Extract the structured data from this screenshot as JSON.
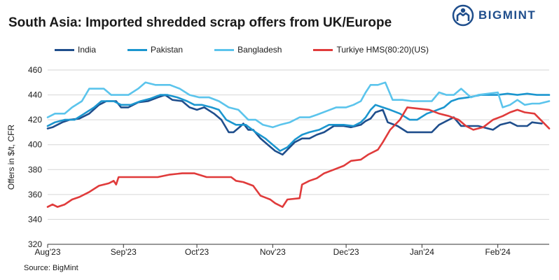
{
  "title": "South Asia: Imported shredded scrap offers from UK/Europe",
  "logo": {
    "text": "BIGMINT",
    "color": "#1f4e8c",
    "icon": "bigmint-logo-icon"
  },
  "source": "Source: BigMint",
  "chart_data": {
    "type": "line",
    "title": "South Asia: Imported shredded scrap offers from UK/Europe",
    "xlabel": "",
    "ylabel": "Offers in $/t, CFR",
    "ylim": [
      320,
      460
    ],
    "yticks": [
      320,
      340,
      360,
      380,
      400,
      420,
      440,
      460
    ],
    "xlim": [
      "2023-08-01",
      "2024-02-22"
    ],
    "xticks": [
      {
        "label": "Aug'23",
        "date": "2023-08-01"
      },
      {
        "label": "Sep'23",
        "date": "2023-09-01"
      },
      {
        "label": "Oct'23",
        "date": "2023-10-01"
      },
      {
        "label": "Nov'23",
        "date": "2023-11-01"
      },
      {
        "label": "Dec'23",
        "date": "2023-12-01"
      },
      {
        "label": "Jan'24",
        "date": "2024-01-01"
      },
      {
        "label": "Feb'24",
        "date": "2024-02-01"
      }
    ],
    "grid": "horizontal",
    "legend_position": "top",
    "series": [
      {
        "name": "India",
        "color": "#1f4e8c",
        "points": [
          [
            "2023-08-01",
            413
          ],
          [
            "2023-08-03",
            414
          ],
          [
            "2023-08-07",
            418
          ],
          [
            "2023-08-10",
            420
          ],
          [
            "2023-08-14",
            421
          ],
          [
            "2023-08-18",
            425
          ],
          [
            "2023-08-22",
            432
          ],
          [
            "2023-08-25",
            435
          ],
          [
            "2023-08-29",
            435
          ],
          [
            "2023-08-31",
            430
          ],
          [
            "2023-09-03",
            430
          ],
          [
            "2023-09-07",
            434
          ],
          [
            "2023-09-11",
            435
          ],
          [
            "2023-09-15",
            438
          ],
          [
            "2023-09-18",
            440
          ],
          [
            "2023-09-21",
            436
          ],
          [
            "2023-09-25",
            435
          ],
          [
            "2023-09-28",
            430
          ],
          [
            "2023-10-01",
            428
          ],
          [
            "2023-10-04",
            430
          ],
          [
            "2023-10-08",
            425
          ],
          [
            "2023-10-11",
            420
          ],
          [
            "2023-10-14",
            410
          ],
          [
            "2023-10-16",
            410
          ],
          [
            "2023-10-19",
            415
          ],
          [
            "2023-10-20",
            417
          ],
          [
            "2023-10-22",
            412
          ],
          [
            "2023-10-24",
            412
          ],
          [
            "2023-10-27",
            405
          ],
          [
            "2023-10-30",
            400
          ],
          [
            "2023-11-02",
            395
          ],
          [
            "2023-11-05",
            392
          ],
          [
            "2023-11-07",
            396
          ],
          [
            "2023-11-10",
            402
          ],
          [
            "2023-11-13",
            405
          ],
          [
            "2023-11-16",
            405
          ],
          [
            "2023-11-19",
            408
          ],
          [
            "2023-11-22",
            410
          ],
          [
            "2023-11-26",
            415
          ],
          [
            "2023-11-30",
            415
          ],
          [
            "2023-12-03",
            414
          ],
          [
            "2023-12-07",
            416
          ],
          [
            "2023-12-09",
            419
          ],
          [
            "2023-12-11",
            421
          ],
          [
            "2023-12-13",
            426
          ],
          [
            "2023-12-16",
            428
          ],
          [
            "2023-12-18",
            418
          ],
          [
            "2023-12-22",
            415
          ],
          [
            "2023-12-26",
            410
          ],
          [
            "2024-01-02",
            410
          ],
          [
            "2024-01-05",
            410
          ],
          [
            "2024-01-08",
            416
          ],
          [
            "2024-01-12",
            420
          ],
          [
            "2024-01-14",
            422
          ],
          [
            "2024-01-17",
            415
          ],
          [
            "2024-01-24",
            415
          ],
          [
            "2024-01-30",
            412
          ],
          [
            "2024-02-02",
            416
          ],
          [
            "2024-02-06",
            418
          ],
          [
            "2024-02-09",
            415
          ],
          [
            "2024-02-13",
            415
          ],
          [
            "2024-02-15",
            418
          ],
          [
            "2024-02-19",
            417
          ]
        ]
      },
      {
        "name": "Pakistan",
        "color": "#1b96cf",
        "points": [
          [
            "2023-08-01",
            415
          ],
          [
            "2023-08-04",
            418
          ],
          [
            "2023-08-08",
            420
          ],
          [
            "2023-08-12",
            420
          ],
          [
            "2023-08-16",
            425
          ],
          [
            "2023-08-20",
            430
          ],
          [
            "2023-08-23",
            435
          ],
          [
            "2023-08-28",
            435
          ],
          [
            "2023-08-31",
            432
          ],
          [
            "2023-09-04",
            432
          ],
          [
            "2023-09-08",
            435
          ],
          [
            "2023-09-12",
            437
          ],
          [
            "2023-09-16",
            440
          ],
          [
            "2023-09-19",
            440
          ],
          [
            "2023-09-23",
            438
          ],
          [
            "2023-09-27",
            435
          ],
          [
            "2023-09-30",
            432
          ],
          [
            "2023-10-03",
            432
          ],
          [
            "2023-10-07",
            430
          ],
          [
            "2023-10-10",
            428
          ],
          [
            "2023-10-13",
            420
          ],
          [
            "2023-10-17",
            416
          ],
          [
            "2023-10-21",
            416
          ],
          [
            "2023-10-25",
            410
          ],
          [
            "2023-10-29",
            405
          ],
          [
            "2023-11-01",
            400
          ],
          [
            "2023-11-04",
            395
          ],
          [
            "2023-11-07",
            398
          ],
          [
            "2023-11-10",
            404
          ],
          [
            "2023-11-13",
            408
          ],
          [
            "2023-11-16",
            410
          ],
          [
            "2023-11-20",
            412
          ],
          [
            "2023-11-24",
            416
          ],
          [
            "2023-11-30",
            416
          ],
          [
            "2023-12-04",
            415
          ],
          [
            "2023-12-07",
            418
          ],
          [
            "2023-12-09",
            422
          ],
          [
            "2023-12-11",
            428
          ],
          [
            "2023-12-13",
            432
          ],
          [
            "2023-12-16",
            430
          ],
          [
            "2023-12-19",
            428
          ],
          [
            "2023-12-23",
            425
          ],
          [
            "2023-12-27",
            420
          ],
          [
            "2023-12-30",
            420
          ],
          [
            "2024-01-03",
            425
          ],
          [
            "2024-01-06",
            427
          ],
          [
            "2024-01-10",
            430
          ],
          [
            "2024-01-13",
            435
          ],
          [
            "2024-01-16",
            437
          ],
          [
            "2024-01-20",
            438
          ],
          [
            "2024-01-25",
            440
          ],
          [
            "2024-02-01",
            440
          ],
          [
            "2024-02-05",
            441
          ],
          [
            "2024-02-09",
            440
          ],
          [
            "2024-02-13",
            441
          ],
          [
            "2024-02-17",
            440
          ],
          [
            "2024-02-22",
            440
          ]
        ]
      },
      {
        "name": "Bangladesh",
        "color": "#5bc4ec",
        "points": [
          [
            "2023-08-01",
            422
          ],
          [
            "2023-08-04",
            425
          ],
          [
            "2023-08-08",
            425
          ],
          [
            "2023-08-11",
            430
          ],
          [
            "2023-08-15",
            435
          ],
          [
            "2023-08-18",
            445
          ],
          [
            "2023-08-24",
            445
          ],
          [
            "2023-08-27",
            440
          ],
          [
            "2023-08-31",
            440
          ],
          [
            "2023-09-03",
            440
          ],
          [
            "2023-09-07",
            445
          ],
          [
            "2023-09-10",
            450
          ],
          [
            "2023-09-14",
            448
          ],
          [
            "2023-09-20",
            448
          ],
          [
            "2023-09-24",
            445
          ],
          [
            "2023-09-28",
            440
          ],
          [
            "2023-10-02",
            438
          ],
          [
            "2023-10-06",
            438
          ],
          [
            "2023-10-10",
            435
          ],
          [
            "2023-10-14",
            430
          ],
          [
            "2023-10-18",
            428
          ],
          [
            "2023-10-22",
            420
          ],
          [
            "2023-10-25",
            420
          ],
          [
            "2023-10-28",
            416
          ],
          [
            "2023-11-01",
            414
          ],
          [
            "2023-11-04",
            416
          ],
          [
            "2023-11-08",
            418
          ],
          [
            "2023-11-12",
            422
          ],
          [
            "2023-11-16",
            422
          ],
          [
            "2023-11-19",
            424
          ],
          [
            "2023-11-23",
            427
          ],
          [
            "2023-11-27",
            430
          ],
          [
            "2023-12-01",
            430
          ],
          [
            "2023-12-04",
            432
          ],
          [
            "2023-12-07",
            435
          ],
          [
            "2023-12-09",
            442
          ],
          [
            "2023-12-11",
            448
          ],
          [
            "2023-12-14",
            448
          ],
          [
            "2023-12-17",
            450
          ],
          [
            "2023-12-20",
            436
          ],
          [
            "2023-12-24",
            436
          ],
          [
            "2023-12-28",
            435
          ],
          [
            "2024-01-05",
            435
          ],
          [
            "2024-01-08",
            442
          ],
          [
            "2024-01-11",
            440
          ],
          [
            "2024-01-14",
            440
          ],
          [
            "2024-01-17",
            445
          ],
          [
            "2024-01-21",
            438
          ],
          [
            "2024-01-24",
            440
          ],
          [
            "2024-02-01",
            442
          ],
          [
            "2024-02-03",
            430
          ],
          [
            "2024-02-06",
            432
          ],
          [
            "2024-02-09",
            436
          ],
          [
            "2024-02-12",
            432
          ],
          [
            "2024-02-15",
            433
          ],
          [
            "2024-02-18",
            433
          ],
          [
            "2024-02-22",
            435
          ]
        ]
      },
      {
        "name": "Turkiye HMS(80:20)(US)",
        "color": "#e03b3b",
        "points": [
          [
            "2023-08-01",
            350
          ],
          [
            "2023-08-03",
            352
          ],
          [
            "2023-08-05",
            350
          ],
          [
            "2023-08-08",
            352
          ],
          [
            "2023-08-11",
            356
          ],
          [
            "2023-08-14",
            358
          ],
          [
            "2023-08-18",
            362
          ],
          [
            "2023-08-22",
            367
          ],
          [
            "2023-08-26",
            369
          ],
          [
            "2023-08-28",
            371
          ],
          [
            "2023-08-29",
            368
          ],
          [
            "2023-08-30",
            374
          ],
          [
            "2023-09-05",
            374
          ],
          [
            "2023-09-10",
            374
          ],
          [
            "2023-09-15",
            374
          ],
          [
            "2023-09-20",
            376
          ],
          [
            "2023-09-25",
            377
          ],
          [
            "2023-09-30",
            377
          ],
          [
            "2023-10-05",
            374
          ],
          [
            "2023-10-10",
            374
          ],
          [
            "2023-10-15",
            374
          ],
          [
            "2023-10-17",
            371
          ],
          [
            "2023-10-20",
            370
          ],
          [
            "2023-10-24",
            367
          ],
          [
            "2023-10-27",
            359
          ],
          [
            "2023-10-31",
            356
          ],
          [
            "2023-11-02",
            353
          ],
          [
            "2023-11-05",
            350
          ],
          [
            "2023-11-07",
            356
          ],
          [
            "2023-11-12",
            357
          ],
          [
            "2023-11-13",
            368
          ],
          [
            "2023-11-16",
            371
          ],
          [
            "2023-11-19",
            373
          ],
          [
            "2023-11-22",
            377
          ],
          [
            "2023-11-26",
            380
          ],
          [
            "2023-11-30",
            383
          ],
          [
            "2023-12-03",
            387
          ],
          [
            "2023-12-07",
            388
          ],
          [
            "2023-12-10",
            392
          ],
          [
            "2023-12-14",
            396
          ],
          [
            "2023-12-16",
            402
          ],
          [
            "2023-12-19",
            412
          ],
          [
            "2023-12-23",
            420
          ],
          [
            "2023-12-26",
            430
          ],
          [
            "2024-01-04",
            428
          ],
          [
            "2024-01-08",
            425
          ],
          [
            "2024-01-12",
            423
          ],
          [
            "2024-01-16",
            420
          ],
          [
            "2024-01-19",
            415
          ],
          [
            "2024-01-22",
            412
          ],
          [
            "2024-01-26",
            414
          ],
          [
            "2024-01-30",
            420
          ],
          [
            "2024-02-03",
            423
          ],
          [
            "2024-02-06",
            426
          ],
          [
            "2024-02-09",
            428
          ],
          [
            "2024-02-12",
            426
          ],
          [
            "2024-02-16",
            425
          ],
          [
            "2024-02-22",
            413
          ]
        ]
      }
    ]
  }
}
